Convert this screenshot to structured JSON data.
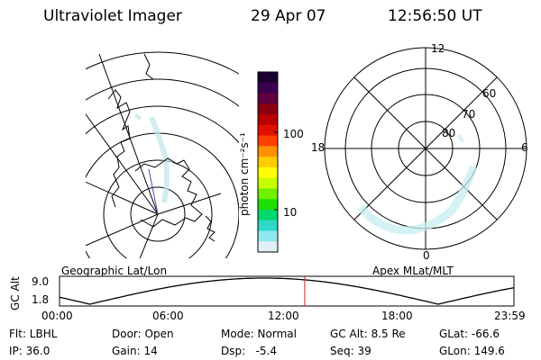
{
  "header": {
    "title": "Ultraviolet Imager",
    "date": "29 Apr 07",
    "time": "12:56:50 UT"
  },
  "left_panel": {
    "label": "Geographic Lat/Lon"
  },
  "right_panel": {
    "label": "Apex MLat/MLT",
    "mlt_labels": {
      "top": "12",
      "bottom": "0",
      "left": "18",
      "right": "6"
    },
    "lat_labels": [
      "60",
      "70",
      "80"
    ]
  },
  "colorbar": {
    "unit_label": "photon cm⁻²s⁻¹",
    "ticks": [
      "100",
      "10"
    ],
    "colors": [
      "#1c0030",
      "#3a0050",
      "#600040",
      "#8a0010",
      "#b80000",
      "#e01000",
      "#ff4000",
      "#ff9000",
      "#ffcc00",
      "#ffff00",
      "#c8ff00",
      "#70f000",
      "#20e000",
      "#00d870",
      "#30d8c8",
      "#90e8ec",
      "#e0f0f8"
    ]
  },
  "altitude_plot": {
    "ylabel": "GC Alt",
    "yticks": [
      "9.0",
      "1.8"
    ],
    "xticks": [
      "00:00",
      "06:00",
      "12:00",
      "18:00",
      "23:59"
    ],
    "current_time_hours": 12.95,
    "marker_color": "#d02020"
  },
  "footer": {
    "row1": {
      "flt": "Flt: LBHL",
      "door": "Door: Open",
      "mode": "Mode: Normal",
      "gcalt": "GC Alt: 8.5 Re",
      "glat": "GLat: -66.6"
    },
    "row2": {
      "ip": "IP: 36.0",
      "gain": "Gain: 14",
      "dsp": "Dsp:   -5.4",
      "seq": "Seq: 39",
      "glon": "GLon: 149.6"
    }
  }
}
